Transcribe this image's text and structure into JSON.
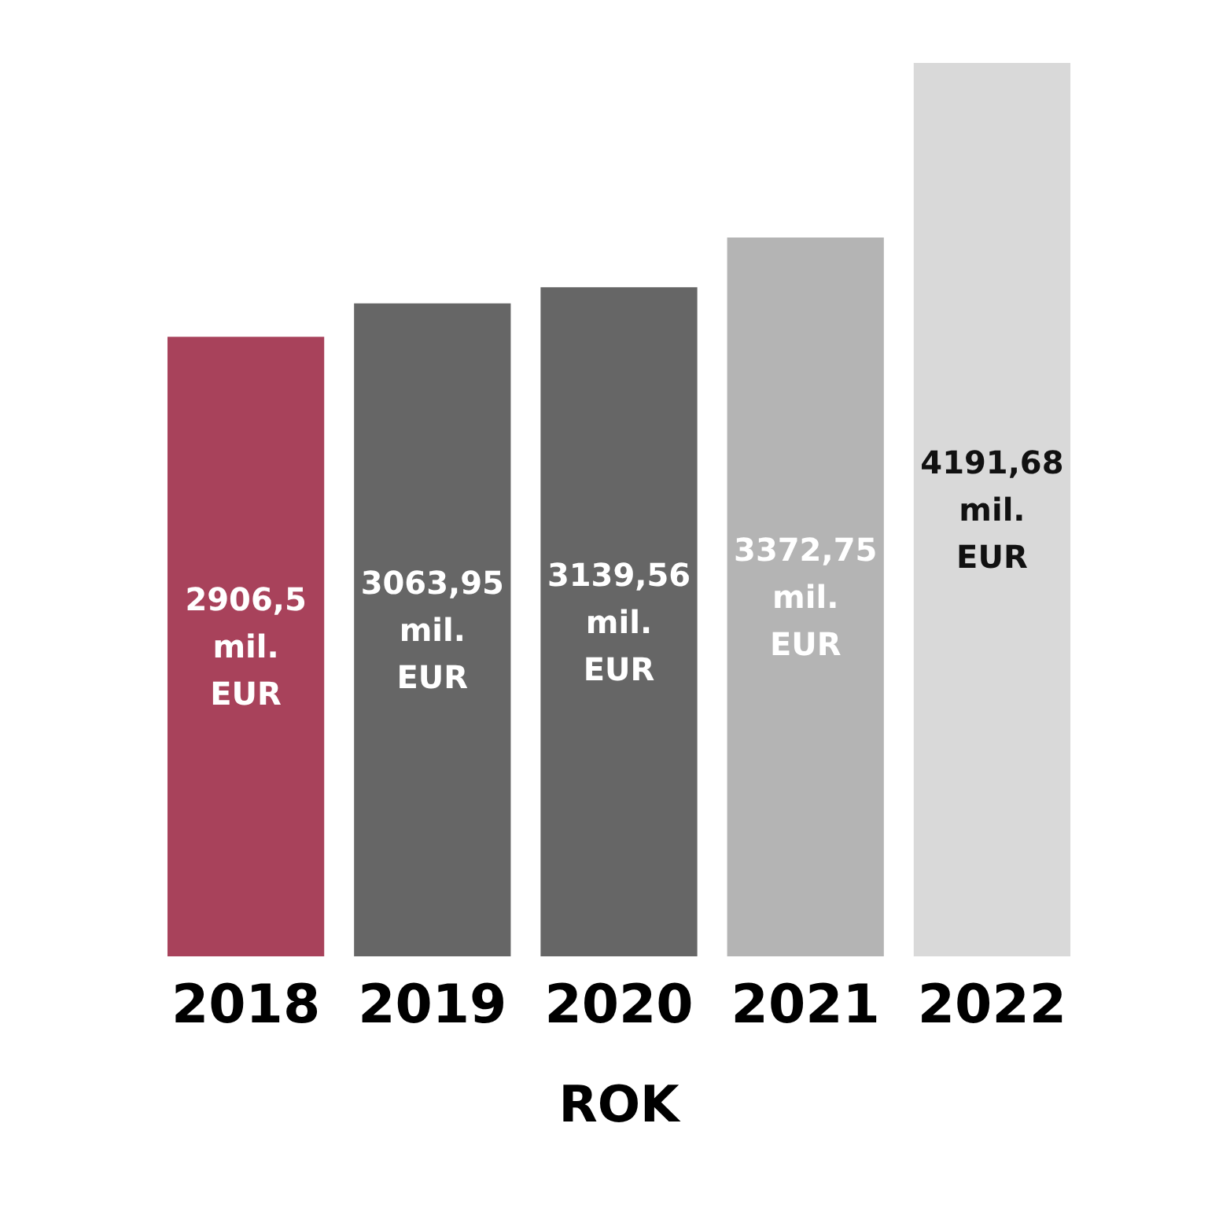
{
  "chart_data": {
    "type": "bar",
    "xlabel": "ROK",
    "categories": [
      "2018",
      "2019",
      "2020",
      "2021",
      "2022"
    ],
    "values": [
      2906.5,
      3063.95,
      3139.56,
      3372.75,
      4191.68
    ],
    "colors": [
      "#a8425b",
      "#666666",
      "#666666",
      "#b4b4b4",
      "#d9d9d9"
    ],
    "value_labels": [
      "2906,5 mil. EUR",
      "3063,95 mil. EUR",
      "3139,56 mil. EUR",
      "3372,75 mil. EUR",
      "4191,68 mil. EUR"
    ]
  }
}
